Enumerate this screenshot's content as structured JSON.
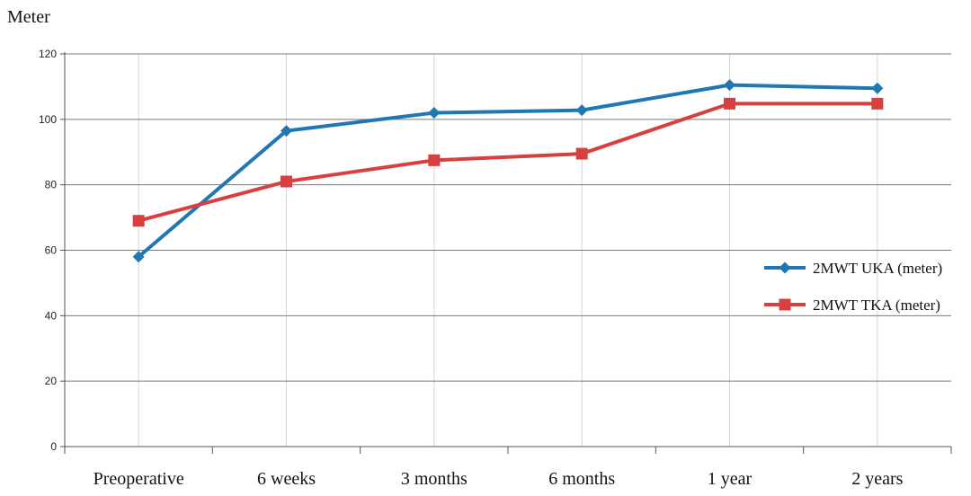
{
  "chart_data": {
    "type": "line",
    "ylabel": "Meter",
    "xlabel": "",
    "categories": [
      "Preoperative",
      "6 weeks",
      "3 months",
      "6 months",
      "1 year",
      "2 years"
    ],
    "ylim": [
      0,
      120
    ],
    "yticks": [
      0,
      20,
      40,
      60,
      80,
      100,
      120
    ],
    "grid": true,
    "legend_position": "right",
    "series": [
      {
        "name": "2MWT UKA (meter)",
        "values": [
          58,
          96.5,
          102,
          102.8,
          110.5,
          109.5
        ],
        "color": "#1f77b4",
        "marker": "diamond"
      },
      {
        "name": "2MWT TKA (meter)",
        "values": [
          69,
          81,
          87.5,
          89.5,
          104.8,
          104.8
        ],
        "color": "#d84040",
        "marker": "square"
      }
    ]
  }
}
